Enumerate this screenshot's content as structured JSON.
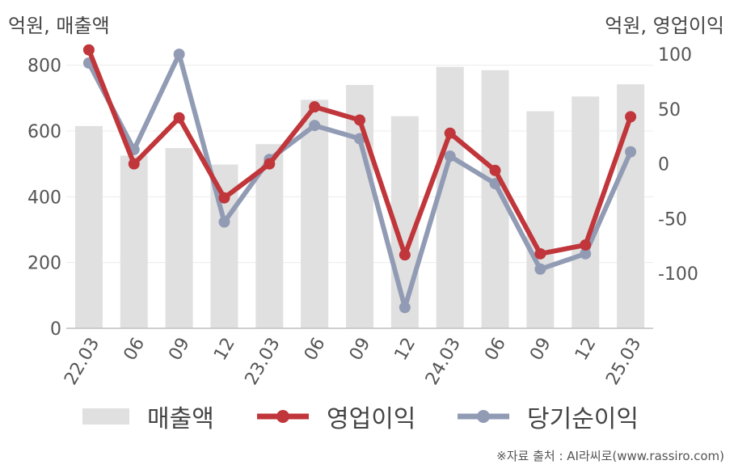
{
  "units": {
    "left": "억원, 매출액",
    "right": "억원, 영업이익"
  },
  "chart_data": {
    "type": "bar",
    "categories": [
      "22.03",
      "06",
      "09",
      "12",
      "23.03",
      "06",
      "09",
      "12",
      "24.03",
      "06",
      "09",
      "12",
      "25.03"
    ],
    "series": [
      {
        "name": "매출액",
        "type": "bar",
        "axis": "left",
        "color": "#e0e0e0",
        "values": [
          615,
          525,
          548,
          498,
          560,
          695,
          740,
          645,
          795,
          785,
          660,
          705,
          742
        ]
      },
      {
        "name": "영업이익",
        "type": "line",
        "axis": "right",
        "color": "#c0363a",
        "values": [
          104,
          0,
          42,
          -31,
          0,
          52,
          40,
          -83,
          28,
          -6,
          -82,
          -74,
          43
        ]
      },
      {
        "name": "당기순이익",
        "type": "line",
        "axis": "right",
        "color": "#919bb4",
        "values": [
          92,
          13,
          100,
          -53,
          4,
          35,
          23,
          -131,
          7,
          -18,
          -96,
          -82,
          11
        ]
      }
    ],
    "left_axis": {
      "ylim": [
        0,
        900
      ],
      "ticks": [
        "0",
        "200",
        "400",
        "600",
        "800"
      ],
      "tick_values": [
        0,
        200,
        400,
        600,
        800
      ]
    },
    "right_axis": {
      "ylim": [
        -150,
        120
      ],
      "ticks": [
        "-100",
        "-50",
        "0",
        "50",
        "100"
      ],
      "tick_values": [
        -100,
        -50,
        0,
        50,
        100
      ]
    },
    "grid": true,
    "legend_position": "bottom"
  },
  "legend": [
    {
      "label": "매출액",
      "kind": "bar",
      "color": "#e0e0e0"
    },
    {
      "label": "영업이익",
      "kind": "line",
      "color": "#c0363a"
    },
    {
      "label": "당기순이익",
      "kind": "line",
      "color": "#919bb4"
    }
  ],
  "source": "※자료 출처 : AI라씨로(www.rassiro.com)"
}
